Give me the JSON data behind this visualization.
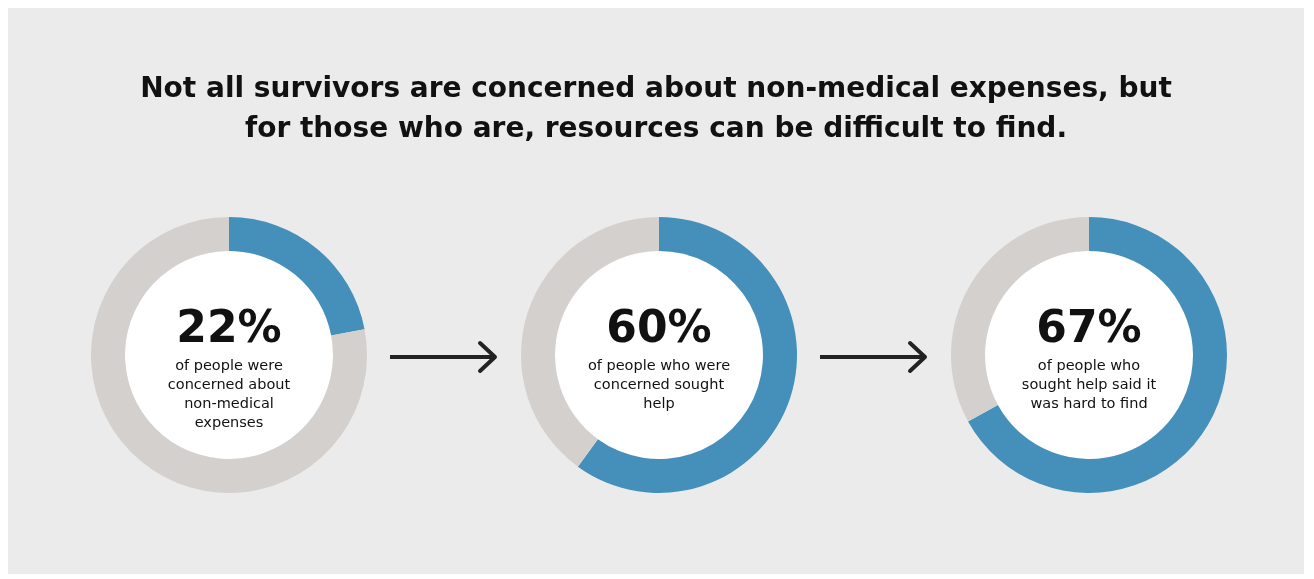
{
  "chart_data": [
    {
      "type": "donut",
      "title": "Not all survivors are concerned about non-medical expenses, but for those who are, resources can be difficult to find.",
      "categories": [
        null,
        null
      ],
      "values": [
        22,
        78
      ],
      "colors": [
        "#4490bb",
        "#d4d0ce"
      ],
      "value_labels": [
        "22%",
        null
      ],
      "annotations": [
        "of people were concerned about non-medical expenses"
      ]
    },
    {
      "type": "donut",
      "categories": [
        null,
        null
      ],
      "values": [
        60,
        40
      ],
      "colors": [
        "#4490bb",
        "#d4d0ce"
      ],
      "value_labels": [
        "60%",
        null
      ],
      "annotations": [
        "of people who were concerned sought help"
      ]
    },
    {
      "type": "donut",
      "categories": [
        null,
        null
      ],
      "values": [
        67,
        33
      ],
      "colors": [
        "#4490bb",
        "#d4d0ce"
      ],
      "value_labels": [
        "67%",
        null
      ],
      "annotations": [
        "of people who sought help said it was hard to find"
      ]
    }
  ]
}
